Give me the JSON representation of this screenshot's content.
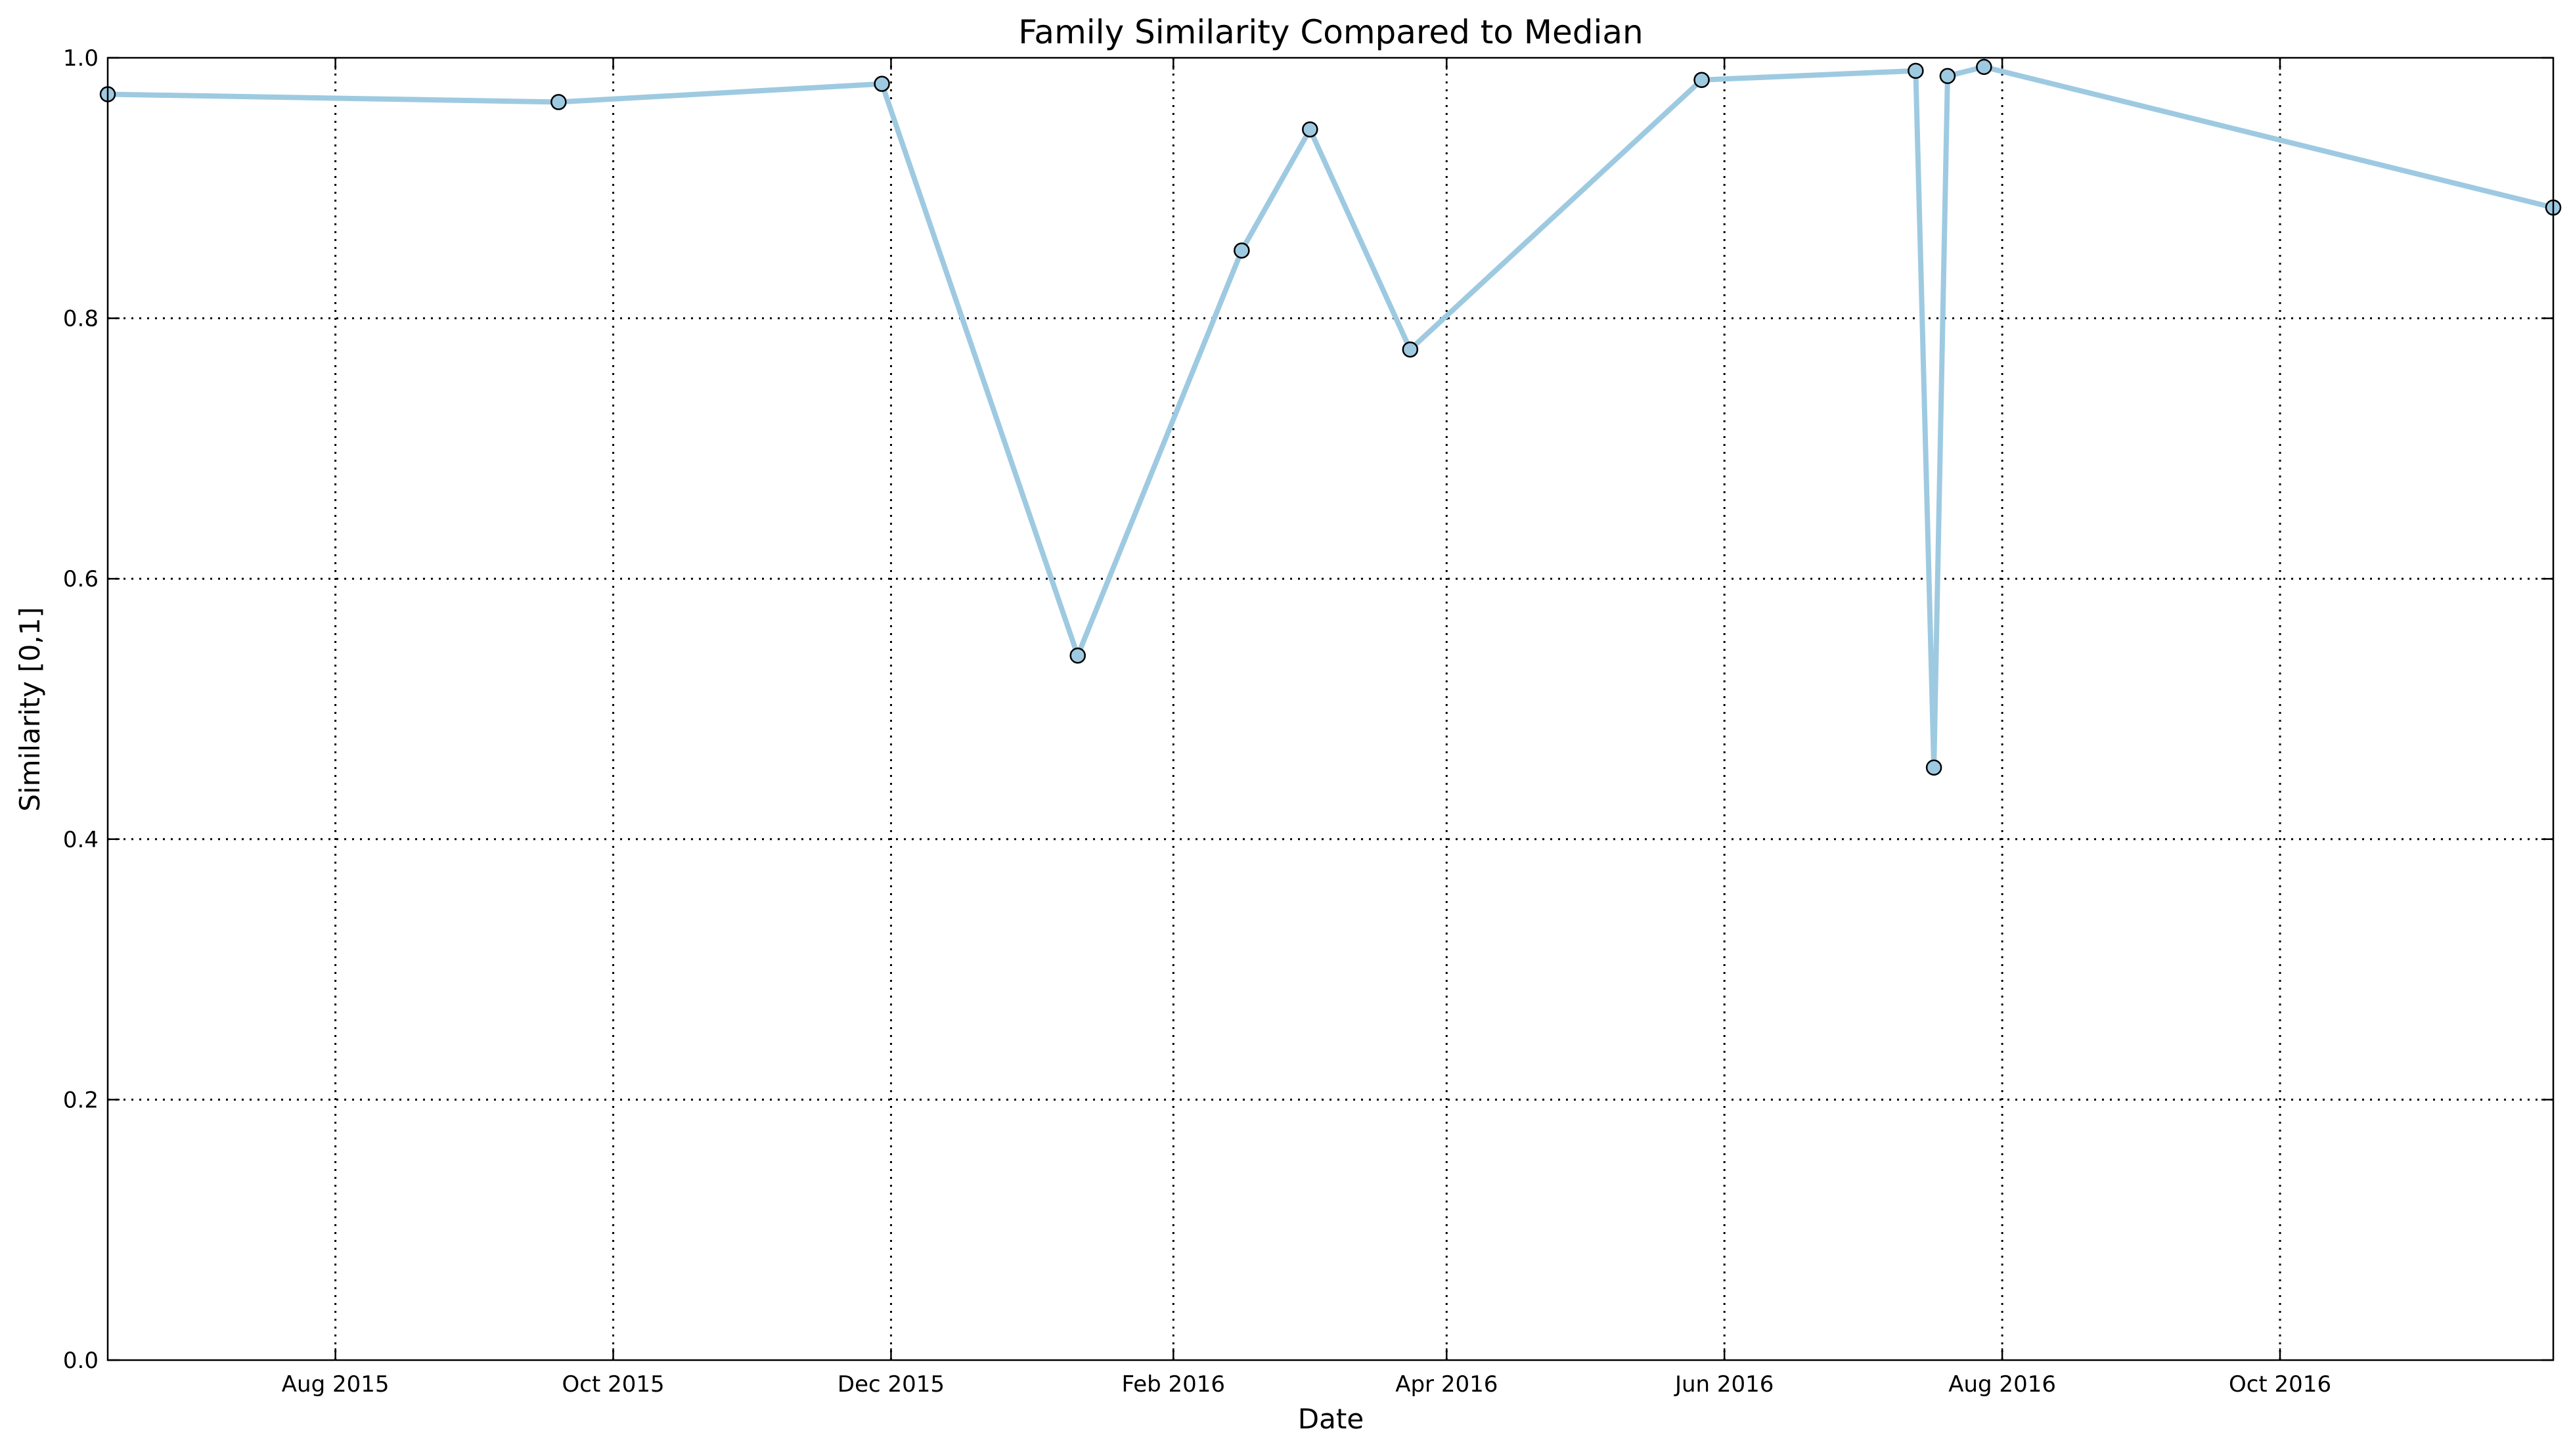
{
  "chart_data": {
    "type": "line",
    "title": "Family Similarity Compared to Median",
    "xlabel": "Date",
    "ylabel": "Similarity [0,1]",
    "x_type": "date",
    "xlim": [
      "2015-06-12",
      "2016-11-30"
    ],
    "ylim": [
      0.0,
      1.0
    ],
    "x_ticks": [
      {
        "date": "2015-08-01",
        "label": "Aug 2015"
      },
      {
        "date": "2015-10-01",
        "label": "Oct 2015"
      },
      {
        "date": "2015-12-01",
        "label": "Dec 2015"
      },
      {
        "date": "2016-02-01",
        "label": "Feb 2016"
      },
      {
        "date": "2016-04-01",
        "label": "Apr 2016"
      },
      {
        "date": "2016-06-01",
        "label": "Jun 2016"
      },
      {
        "date": "2016-08-01",
        "label": "Aug 2016"
      },
      {
        "date": "2016-10-01",
        "label": "Oct 2016"
      }
    ],
    "y_ticks": [
      {
        "value": 0.0,
        "label": "0.0"
      },
      {
        "value": 0.2,
        "label": "0.2"
      },
      {
        "value": 0.4,
        "label": "0.4"
      },
      {
        "value": 0.6,
        "label": "0.6"
      },
      {
        "value": 0.8,
        "label": "0.8"
      },
      {
        "value": 1.0,
        "label": "1.0"
      }
    ],
    "grid": true,
    "line_color": "#9ecae1",
    "marker_edge_color": "#000000",
    "series": [
      {
        "points": [
          {
            "x": "2015-06-12",
            "y": 0.972
          },
          {
            "x": "2015-09-19",
            "y": 0.966
          },
          {
            "x": "2015-11-29",
            "y": 0.98
          },
          {
            "x": "2016-01-11",
            "y": 0.541
          },
          {
            "x": "2016-02-16",
            "y": 0.852
          },
          {
            "x": "2016-03-02",
            "y": 0.945
          },
          {
            "x": "2016-03-24",
            "y": 0.776
          },
          {
            "x": "2016-05-27",
            "y": 0.983
          },
          {
            "x": "2016-07-13",
            "y": 0.99
          },
          {
            "x": "2016-07-17",
            "y": 0.455
          },
          {
            "x": "2016-07-20",
            "y": 0.986
          },
          {
            "x": "2016-07-28",
            "y": 0.993
          },
          {
            "x": "2016-11-30",
            "y": 0.885
          }
        ]
      }
    ]
  }
}
